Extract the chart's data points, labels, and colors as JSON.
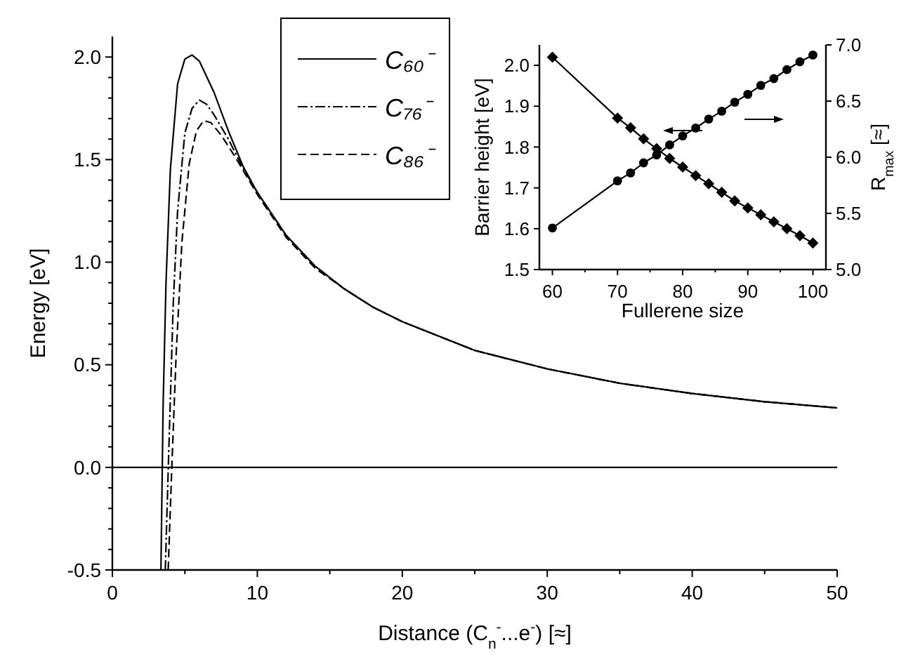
{
  "chart_data": [
    {
      "type": "line",
      "xlabel": "Distance (C$_{n}$$^{-}$...e$^{-}$)  [≈]",
      "ylabel": "Energy [eV]",
      "xlim": [
        0,
        50
      ],
      "ylim": [
        -0.5,
        2.1
      ],
      "xticks": [
        0,
        {
          "value": 5,
          "label": null
        },
        10,
        {
          "value": 15,
          "label": null
        },
        20,
        {
          "value": 25,
          "label": null
        },
        30,
        {
          "value": 35,
          "label": null
        },
        40,
        {
          "value": 45,
          "label": null
        },
        50
      ],
      "yticks": [
        {
          "value": -0.5,
          "label": "-0.5"
        },
        {
          "value": -0.4,
          "label": null
        },
        {
          "value": -0.3,
          "label": null
        },
        {
          "value": -0.2,
          "label": null
        },
        {
          "value": -0.1,
          "label": null
        },
        {
          "value": 0,
          "label": "0.0"
        },
        {
          "value": 0.1,
          "label": null
        },
        {
          "value": 0.2,
          "label": null
        },
        {
          "value": 0.3,
          "label": null
        },
        {
          "value": 0.4,
          "label": null
        },
        {
          "value": 0.5,
          "label": "0.5"
        },
        {
          "value": 0.6,
          "label": null
        },
        {
          "value": 0.7,
          "label": null
        },
        {
          "value": 0.8,
          "label": null
        },
        {
          "value": 0.9,
          "label": null
        },
        {
          "value": 1,
          "label": "1.0"
        },
        {
          "value": 1.1,
          "label": null
        },
        {
          "value": 1.2,
          "label": null
        },
        {
          "value": 1.3,
          "label": null
        },
        {
          "value": 1.4,
          "label": null
        },
        {
          "value": 1.5,
          "label": "1.5"
        },
        {
          "value": 1.6,
          "label": null
        },
        {
          "value": 1.7,
          "label": null
        },
        {
          "value": 1.8,
          "label": null
        },
        {
          "value": 1.9,
          "label": null
        },
        {
          "value": 2,
          "label": "2.0"
        }
      ],
      "ref_lines": [
        {
          "axis": "y",
          "value": 0,
          "color": "#000000"
        }
      ],
      "legend": "top",
      "grid": false,
      "marker": "none",
      "series": [
        {
          "name": "C₆₀⁻",
          "color": "#000000",
          "line_style": "solid",
          "x": [
            3.35,
            3.5,
            3.7,
            4.0,
            4.5,
            5.0,
            5.5,
            6.0,
            7.0,
            8.0,
            9.0,
            10,
            12,
            14,
            16,
            18,
            20,
            25,
            30,
            35,
            40,
            45,
            50
          ],
          "values": [
            -0.5,
            0.3,
            0.9,
            1.45,
            1.87,
            1.99,
            2.01,
            1.98,
            1.83,
            1.64,
            1.47,
            1.34,
            1.13,
            0.98,
            0.87,
            0.78,
            0.71,
            0.57,
            0.48,
            0.41,
            0.36,
            0.32,
            0.29
          ]
        },
        {
          "name": "C₇₆⁻",
          "color": "#000000",
          "line_style": "dashdot",
          "x": [
            3.65,
            3.9,
            4.2,
            4.5,
            5.0,
            5.5,
            6.0,
            6.5,
            7.0,
            8.0,
            9.0,
            10,
            12,
            14,
            16,
            18,
            20,
            25,
            30,
            35,
            40,
            45,
            50
          ],
          "values": [
            -0.5,
            0.1,
            0.8,
            1.25,
            1.63,
            1.75,
            1.79,
            1.77,
            1.72,
            1.6,
            1.46,
            1.34,
            1.13,
            0.98,
            0.87,
            0.78,
            0.71,
            0.57,
            0.48,
            0.41,
            0.36,
            0.32,
            0.29
          ]
        },
        {
          "name": "C₈₆⁻",
          "color": "#000000",
          "line_style": "dashed",
          "x": [
            3.85,
            4.1,
            4.4,
            4.8,
            5.3,
            5.8,
            6.3,
            6.8,
            7.5,
            8.5,
            9.5,
            10,
            12,
            14,
            16,
            18,
            20,
            25,
            30,
            35,
            40,
            45,
            50
          ],
          "values": [
            -0.5,
            0.0,
            0.55,
            1.1,
            1.48,
            1.64,
            1.69,
            1.68,
            1.62,
            1.51,
            1.39,
            1.33,
            1.12,
            0.97,
            0.87,
            0.78,
            0.71,
            0.57,
            0.48,
            0.41,
            0.36,
            0.32,
            0.29
          ]
        }
      ]
    },
    {
      "type": "line",
      "xlabel": "Fullerene size",
      "ylabel": "Barrier height [eV]",
      "y2label": "R$_{max}$ [≈]",
      "xlim": [
        58,
        102
      ],
      "ylim": [
        1.5,
        2.05
      ],
      "y2lim": [
        5.0,
        7.0
      ],
      "xticks": [
        60,
        {
          "value": 65,
          "label": null
        },
        70,
        {
          "value": 75,
          "label": null
        },
        80,
        {
          "value": 85,
          "label": null
        },
        90,
        {
          "value": 95,
          "label": null
        },
        100
      ],
      "yticks": [
        1.5,
        1.6,
        1.7,
        1.8,
        1.9,
        {
          "value": 2,
          "label": "2.0"
        }
      ],
      "y2ticks": [
        {
          "value": 5,
          "label": "5.0"
        },
        5.5,
        {
          "value": 6,
          "label": "6.0"
        },
        6.5,
        {
          "value": 7,
          "label": "7.0"
        }
      ],
      "legend": false,
      "grid": false,
      "line_style": "solid",
      "series": [
        {
          "color": "#000000",
          "marker": "diamond",
          "x": [
            60,
            70,
            72,
            74,
            76,
            78,
            80,
            82,
            84,
            86,
            88,
            90,
            92,
            94,
            96,
            98,
            100
          ],
          "values": [
            2.02,
            1.871,
            1.847,
            1.82,
            1.796,
            1.772,
            1.751,
            1.73,
            1.71,
            1.689,
            1.668,
            1.651,
            1.634,
            1.617,
            1.6,
            1.583,
            1.565
          ]
        },
        {
          "color": "#000000",
          "marker": "circle",
          "axis": "y2",
          "x": [
            60,
            70,
            72,
            74,
            76,
            78,
            80,
            82,
            84,
            86,
            88,
            90,
            92,
            94,
            96,
            98,
            100
          ],
          "values": [
            5.37,
            5.79,
            5.86,
            5.95,
            6.02,
            6.11,
            6.19,
            6.26,
            6.34,
            6.41,
            6.49,
            6.56,
            6.64,
            6.7,
            6.78,
            6.85,
            6.91
          ]
        }
      ]
    }
  ]
}
